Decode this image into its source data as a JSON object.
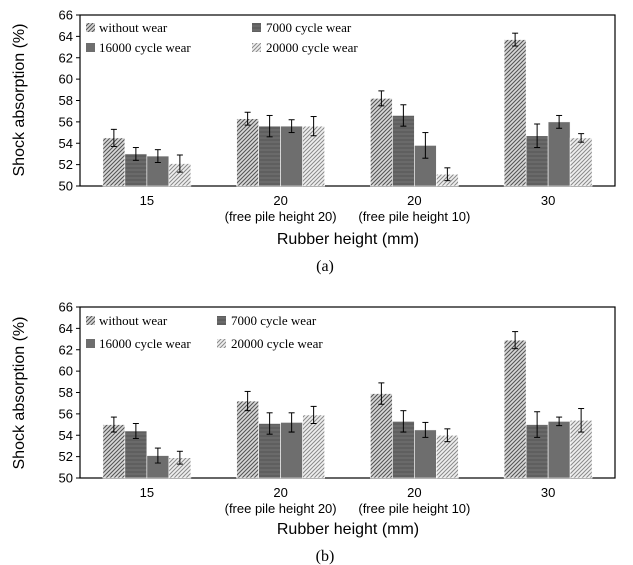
{
  "colors": {
    "series": [
      "#9a9a9a",
      "#6f6f6f",
      "#7f7f7f",
      "#bdbdbd"
    ],
    "hatch_dark": "#4a4a4a",
    "bar_fill": "#8a8a8a",
    "axis": "#000000"
  },
  "chart_data": [
    {
      "type": "bar",
      "panel_label": "(a)",
      "xlabel": "Rubber height (mm)",
      "ylabel": "Shock absorption (%)",
      "ylim": [
        50,
        66
      ],
      "yticks": [
        "50",
        "52",
        "54",
        "56",
        "58",
        "60",
        "62",
        "64",
        "66"
      ],
      "legend_placement": "top-left",
      "categories": [
        {
          "line1": "15",
          "line2": ""
        },
        {
          "line1": "20",
          "line2": "(free pile height 20)"
        },
        {
          "line1": "20",
          "line2": "(free pile height 10)"
        },
        {
          "line1": "30",
          "line2": ""
        }
      ],
      "series": [
        {
          "name": "without wear",
          "values": [
            54.5,
            56.3,
            58.2,
            63.7
          ],
          "errors": [
            0.8,
            0.6,
            0.7,
            0.6
          ]
        },
        {
          "name": "7000 cycle wear",
          "values": [
            53.0,
            55.6,
            56.6,
            54.7
          ],
          "errors": [
            0.6,
            1.0,
            1.0,
            1.1
          ]
        },
        {
          "name": "16000 cycle wear",
          "values": [
            52.8,
            55.6,
            53.8,
            56.0
          ],
          "errors": [
            0.6,
            0.6,
            1.2,
            0.6
          ]
        },
        {
          "name": "20000 cycle wear",
          "values": [
            52.1,
            55.6,
            51.1,
            54.5
          ],
          "errors": [
            0.8,
            0.9,
            0.6,
            0.4
          ]
        }
      ]
    },
    {
      "type": "bar",
      "panel_label": "(b)",
      "xlabel": "Rubber height (mm)",
      "ylabel": "Shock absorption (%)",
      "ylim": [
        50,
        66
      ],
      "yticks": [
        "50",
        "52",
        "54",
        "56",
        "58",
        "60",
        "62",
        "64",
        "66"
      ],
      "legend_placement": "top-left",
      "categories": [
        {
          "line1": "15",
          "line2": ""
        },
        {
          "line1": "20",
          "line2": "(free pile height 20)"
        },
        {
          "line1": "20",
          "line2": "(free pile height 10)"
        },
        {
          "line1": "30",
          "line2": ""
        }
      ],
      "series": [
        {
          "name": "without wear",
          "values": [
            55.0,
            57.2,
            57.9,
            62.9
          ],
          "errors": [
            0.7,
            0.9,
            1.0,
            0.8
          ]
        },
        {
          "name": "7000 cycle wear",
          "values": [
            54.4,
            55.1,
            55.3,
            55.0
          ],
          "errors": [
            0.7,
            1.0,
            1.0,
            1.2
          ]
        },
        {
          "name": "16000 cycle wear",
          "values": [
            52.1,
            55.2,
            54.5,
            55.3
          ],
          "errors": [
            0.7,
            0.9,
            0.7,
            0.4
          ]
        },
        {
          "name": "20000 cycle wear",
          "values": [
            51.9,
            55.9,
            54.0,
            55.4
          ],
          "errors": [
            0.6,
            0.8,
            0.6,
            1.1
          ]
        }
      ]
    }
  ]
}
